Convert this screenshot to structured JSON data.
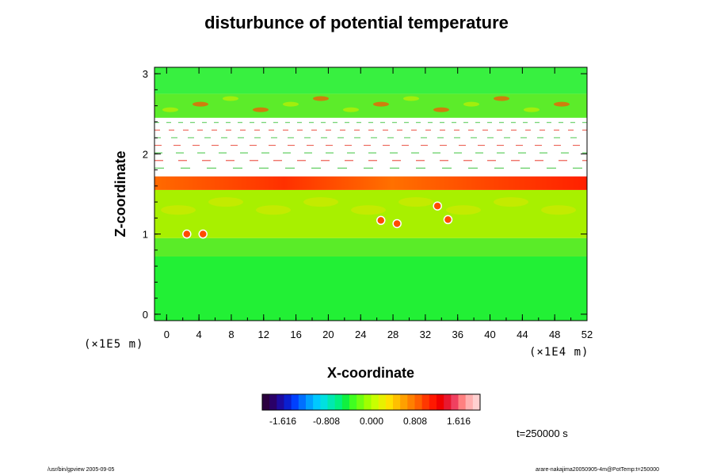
{
  "chart_data": {
    "type": "heatmap",
    "title": "disturbunce of potential temperature",
    "xlabel": "X-coordinate",
    "ylabel": "Z-coordinate",
    "x_unit": "(×1E4 m)",
    "y_unit": "(×1E5 m)",
    "xlim": [
      -1.5,
      52
    ],
    "ylim": [
      -0.08,
      3.08
    ],
    "x_ticks": [
      "0",
      "4",
      "8",
      "12",
      "16",
      "20",
      "24",
      "28",
      "32",
      "36",
      "40",
      "44",
      "48",
      "52"
    ],
    "y_ticks": [
      "0",
      "1",
      "2",
      "3"
    ],
    "colorbar": {
      "ticks": [
        "-1.616",
        "-0.808",
        "0.000",
        "0.808",
        "1.616"
      ],
      "colors": [
        "#2b003f",
        "#2a0068",
        "#1d0ba0",
        "#0a1fd0",
        "#0040ff",
        "#0070ff",
        "#00a0ff",
        "#00c8ff",
        "#00e0e0",
        "#00e8b0",
        "#00f080",
        "#10f040",
        "#40ff20",
        "#70ff10",
        "#a0ff00",
        "#c8ff00",
        "#e8f000",
        "#ffe000",
        "#ffc000",
        "#ffa000",
        "#ff8000",
        "#ff6000",
        "#ff3800",
        "#ff1800",
        "#f00000",
        "#e81830",
        "#f04060",
        "#ff8080",
        "#ffb0b0",
        "#ffd0d0"
      ]
    },
    "bands": [
      {
        "z": [
          -0.08,
          0.72
        ],
        "color": "#22f035"
      },
      {
        "z": [
          0.72,
          0.95
        ],
        "color": "#5aec28"
      },
      {
        "z": [
          0.95,
          1.55
        ],
        "color": "#a8f000"
      },
      {
        "z": [
          1.55,
          1.72
        ],
        "color": "#f5b000"
      },
      {
        "z": [
          1.72,
          2.45
        ],
        "color": "#ffffff"
      },
      {
        "z": [
          2.45,
          2.75
        ],
        "color": "#5cec2a"
      },
      {
        "z": [
          2.75,
          3.08
        ],
        "color": "#38f040"
      }
    ],
    "time": "t=250000 s"
  },
  "footer": {
    "left": "/usr/bin/gpview 2005-09-05",
    "right": "arare-nakajima20050905-4m@PotTemp:t=250000"
  }
}
